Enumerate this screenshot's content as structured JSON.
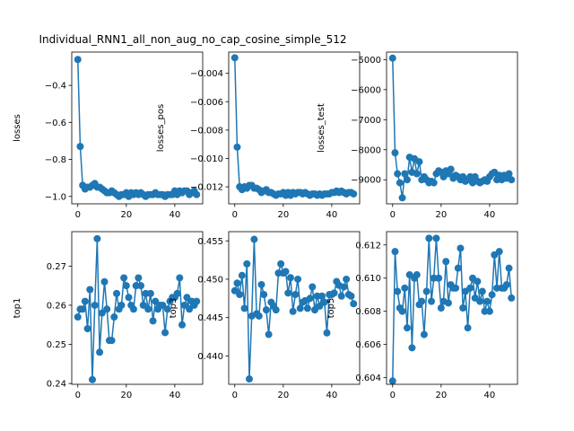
{
  "figure": {
    "title": "Individual_RNN1_all_non_aug_no_cap_cosine_simple_512",
    "series_color": "#1f77b4"
  },
  "chart_data": [
    {
      "type": "line",
      "ylabel": "losses",
      "xlim": [
        -2.5,
        51.5
      ],
      "ylim": [
        -1.04,
        -0.22
      ],
      "xticks": [
        0,
        20,
        40
      ],
      "yticks": [
        -0.4,
        -0.6,
        -0.8,
        -1.0
      ],
      "ytick_labels": [
        "−0.4",
        "−0.6",
        "−0.8",
        "−1.0"
      ],
      "x": [
        0,
        1,
        2,
        3,
        4,
        5,
        6,
        7,
        8,
        9,
        10,
        11,
        12,
        13,
        14,
        15,
        16,
        17,
        18,
        19,
        20,
        21,
        22,
        23,
        24,
        25,
        26,
        27,
        28,
        29,
        30,
        31,
        32,
        33,
        34,
        35,
        36,
        37,
        38,
        39,
        40,
        41,
        42,
        43,
        44,
        45,
        46,
        47,
        48,
        49
      ],
      "y": [
        -0.26,
        -0.73,
        -0.94,
        -0.96,
        -0.95,
        -0.95,
        -0.94,
        -0.93,
        -0.95,
        -0.95,
        -0.96,
        -0.97,
        -0.98,
        -0.98,
        -0.97,
        -0.98,
        -0.99,
        -1.0,
        -0.99,
        -0.99,
        -0.98,
        -1.0,
        -0.98,
        -0.99,
        -0.98,
        -0.99,
        -0.98,
        -0.99,
        -1.0,
        -0.99,
        -0.99,
        -0.99,
        -0.98,
        -0.99,
        -0.99,
        -0.99,
        -1.0,
        -0.99,
        -0.99,
        -0.99,
        -0.97,
        -0.99,
        -0.97,
        -0.98,
        -0.97,
        -0.97,
        -0.99,
        -0.98,
        -0.97,
        -0.99
      ]
    },
    {
      "type": "line",
      "ylabel": "losses_pos",
      "xlim": [
        -2.5,
        51.5
      ],
      "ylim": [
        -0.0132,
        -0.0025
      ],
      "xticks": [
        0,
        20,
        40
      ],
      "yticks": [
        -0.004,
        -0.006,
        -0.008,
        -0.01,
        -0.012
      ],
      "ytick_labels": [
        "−0.004",
        "−0.006",
        "−0.008",
        "−0.010",
        "−0.012"
      ],
      "x": [
        0,
        1,
        2,
        3,
        4,
        5,
        6,
        7,
        8,
        9,
        10,
        11,
        12,
        13,
        14,
        15,
        16,
        17,
        18,
        19,
        20,
        21,
        22,
        23,
        24,
        25,
        26,
        27,
        28,
        29,
        30,
        31,
        32,
        33,
        34,
        35,
        36,
        37,
        38,
        39,
        40,
        41,
        42,
        43,
        44,
        45,
        46,
        47,
        48,
        49
      ],
      "y": [
        -0.0029,
        -0.0092,
        -0.012,
        -0.0122,
        -0.012,
        -0.0121,
        -0.0119,
        -0.0119,
        -0.0121,
        -0.0121,
        -0.0122,
        -0.0124,
        -0.0123,
        -0.0122,
        -0.0124,
        -0.0124,
        -0.0125,
        -0.0126,
        -0.0125,
        -0.0125,
        -0.0124,
        -0.0126,
        -0.0124,
        -0.0126,
        -0.0124,
        -0.0125,
        -0.0124,
        -0.0124,
        -0.0125,
        -0.0124,
        -0.0125,
        -0.0126,
        -0.0125,
        -0.0125,
        -0.0126,
        -0.0125,
        -0.0126,
        -0.0125,
        -0.0125,
        -0.0125,
        -0.0124,
        -0.0124,
        -0.0123,
        -0.0124,
        -0.0123,
        -0.0124,
        -0.0125,
        -0.0124,
        -0.0124,
        -0.0125
      ]
    },
    {
      "type": "line",
      "ylabel": "losses_test",
      "xlim": [
        -2.5,
        51.5
      ],
      "ylim": [
        -9800,
        -4750
      ],
      "xticks": [
        0,
        20,
        40
      ],
      "yticks": [
        -5000,
        -6000,
        -7000,
        -8000,
        -9000
      ],
      "ytick_labels": [
        "−5000",
        "−6000",
        "−7000",
        "−8000",
        "−9000"
      ],
      "x": [
        0,
        1,
        2,
        3,
        4,
        5,
        6,
        7,
        8,
        9,
        10,
        11,
        12,
        13,
        14,
        15,
        16,
        17,
        18,
        19,
        20,
        21,
        22,
        23,
        24,
        25,
        26,
        27,
        28,
        29,
        30,
        31,
        32,
        33,
        34,
        35,
        36,
        37,
        38,
        39,
        40,
        41,
        42,
        43,
        44,
        45,
        46,
        47,
        48,
        49
      ],
      "y": [
        -4950,
        -8100,
        -8800,
        -9100,
        -9600,
        -8800,
        -9000,
        -8250,
        -8750,
        -8300,
        -8800,
        -8400,
        -9000,
        -8900,
        -9000,
        -9100,
        -9050,
        -9100,
        -8800,
        -8700,
        -8750,
        -8900,
        -8700,
        -8800,
        -8650,
        -8950,
        -8850,
        -8900,
        -9000,
        -8900,
        -9050,
        -9000,
        -8900,
        -9100,
        -8900,
        -9050,
        -9100,
        -9050,
        -9000,
        -9050,
        -8900,
        -8800,
        -8750,
        -9000,
        -8850,
        -9000,
        -8850,
        -8950,
        -8800,
        -9000
      ]
    },
    {
      "type": "line",
      "ylabel": "top1",
      "xlim": [
        -2.5,
        51.5
      ],
      "ylim": [
        0.2398,
        0.2788
      ],
      "xticks": [
        0,
        20,
        40
      ],
      "yticks": [
        0.24,
        0.25,
        0.26,
        0.27
      ],
      "ytick_labels": [
        "0.24",
        "0.25",
        "0.26",
        "0.27"
      ],
      "x": [
        0,
        1,
        2,
        3,
        4,
        5,
        6,
        7,
        8,
        9,
        10,
        11,
        12,
        13,
        14,
        15,
        16,
        17,
        18,
        19,
        20,
        21,
        22,
        23,
        24,
        25,
        26,
        27,
        28,
        29,
        30,
        31,
        32,
        33,
        34,
        35,
        36,
        37,
        38,
        39,
        40,
        41,
        42,
        43,
        44,
        45,
        46,
        47,
        48,
        49
      ],
      "y": [
        0.257,
        0.259,
        0.259,
        0.261,
        0.254,
        0.264,
        0.241,
        0.26,
        0.277,
        0.248,
        0.258,
        0.266,
        0.259,
        0.251,
        0.251,
        0.257,
        0.263,
        0.259,
        0.26,
        0.267,
        0.265,
        0.262,
        0.26,
        0.259,
        0.265,
        0.267,
        0.265,
        0.26,
        0.263,
        0.259,
        0.263,
        0.256,
        0.261,
        0.259,
        0.26,
        0.26,
        0.253,
        0.259,
        0.261,
        0.262,
        0.262,
        0.263,
        0.267,
        0.255,
        0.26,
        0.262,
        0.259,
        0.261,
        0.26,
        0.261
      ]
    },
    {
      "type": "line",
      "ylabel": "top3",
      "xlim": [
        -2.5,
        51.5
      ],
      "ylim": [
        0.4363,
        0.4562
      ],
      "xticks": [
        0,
        20,
        40
      ],
      "yticks": [
        0.44,
        0.445,
        0.45,
        0.455
      ],
      "ytick_labels": [
        "0.440",
        "0.445",
        "0.450",
        "0.455"
      ],
      "x": [
        0,
        1,
        2,
        3,
        4,
        5,
        6,
        7,
        8,
        9,
        10,
        11,
        12,
        13,
        14,
        15,
        16,
        17,
        18,
        19,
        20,
        21,
        22,
        23,
        24,
        25,
        26,
        27,
        28,
        29,
        30,
        31,
        32,
        33,
        34,
        35,
        36,
        37,
        38,
        39,
        40,
        41,
        42,
        43,
        44,
        45,
        46,
        47,
        48,
        49
      ],
      "y": [
        0.4485,
        0.4495,
        0.448,
        0.4505,
        0.4462,
        0.452,
        0.437,
        0.4452,
        0.4552,
        0.4455,
        0.4452,
        0.4493,
        0.448,
        0.446,
        0.4428,
        0.447,
        0.4465,
        0.446,
        0.4508,
        0.452,
        0.4508,
        0.451,
        0.4482,
        0.4502,
        0.4458,
        0.448,
        0.45,
        0.4462,
        0.447,
        0.4472,
        0.4462,
        0.4475,
        0.449,
        0.446,
        0.4478,
        0.4465,
        0.4478,
        0.447,
        0.443,
        0.448,
        0.448,
        0.4482,
        0.4497,
        0.4492,
        0.4478,
        0.449,
        0.45,
        0.448,
        0.4478,
        0.4468
      ]
    },
    {
      "type": "line",
      "ylabel": "top5",
      "xlim": [
        -2.5,
        51.5
      ],
      "ylim": [
        0.6036,
        0.6128
      ],
      "xticks": [
        0,
        20,
        40
      ],
      "yticks": [
        0.604,
        0.606,
        0.608,
        0.61,
        0.612
      ],
      "ytick_labels": [
        "0.604",
        "0.606",
        "0.608",
        "0.610",
        "0.612"
      ],
      "x": [
        0,
        1,
        2,
        3,
        4,
        5,
        6,
        7,
        8,
        9,
        10,
        11,
        12,
        13,
        14,
        15,
        16,
        17,
        18,
        19,
        20,
        21,
        22,
        23,
        24,
        25,
        26,
        27,
        28,
        29,
        30,
        31,
        32,
        33,
        34,
        35,
        36,
        37,
        38,
        39,
        40,
        41,
        42,
        43,
        44,
        45,
        46,
        47,
        48,
        49
      ],
      "y": [
        0.6038,
        0.6116,
        0.6092,
        0.6082,
        0.608,
        0.6094,
        0.607,
        0.6102,
        0.6058,
        0.61,
        0.6102,
        0.6084,
        0.6086,
        0.6066,
        0.6092,
        0.6124,
        0.6086,
        0.61,
        0.6124,
        0.61,
        0.6082,
        0.6086,
        0.611,
        0.6085,
        0.6096,
        0.6094,
        0.6094,
        0.6106,
        0.6118,
        0.6082,
        0.6092,
        0.607,
        0.6094,
        0.61,
        0.6088,
        0.6098,
        0.6086,
        0.6092,
        0.608,
        0.6086,
        0.608,
        0.609,
        0.6114,
        0.6094,
        0.6116,
        0.6094,
        0.6094,
        0.6096,
        0.6106,
        0.6088
      ]
    }
  ]
}
